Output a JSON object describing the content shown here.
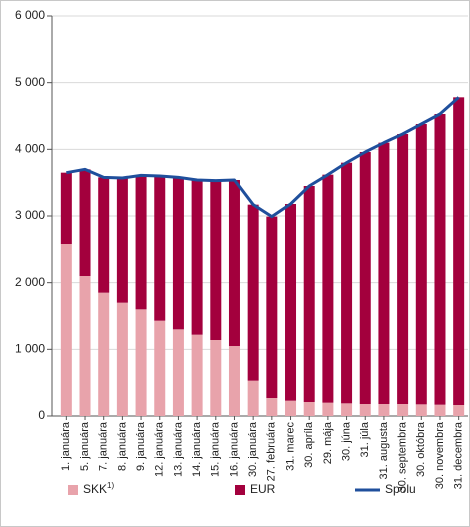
{
  "chart_data": {
    "type": "bar",
    "stacked": true,
    "categories": [
      "1. januára",
      "5. januára",
      "7. januára",
      "8. januára",
      "9. januára",
      "12. januára",
      "13. januára",
      "14. januára",
      "15. januára",
      "16. januára",
      "30. januára",
      "27. februára",
      "31. marec",
      "30. apríla",
      "29. mája",
      "30. júna",
      "31. júla",
      "31. augusta",
      "30. septembra",
      "30. októbra",
      "30. novembra",
      "31. decembra"
    ],
    "series": [
      {
        "name": "SKK",
        "name_superscript": "1)",
        "color": "#e8a3ab",
        "type": "bar",
        "values": [
          2580,
          2100,
          1850,
          1700,
          1600,
          1430,
          1300,
          1220,
          1140,
          1050,
          530,
          270,
          230,
          210,
          200,
          190,
          180,
          180,
          180,
          175,
          170,
          165
        ]
      },
      {
        "name": "EUR",
        "color": "#a3003d",
        "type": "bar",
        "values": [
          1070,
          1600,
          1730,
          1870,
          2010,
          2170,
          2280,
          2320,
          2390,
          2490,
          2640,
          2720,
          2950,
          3240,
          3420,
          3610,
          3780,
          3920,
          4050,
          4205,
          4360,
          4615
        ]
      },
      {
        "name": "Spolu",
        "color": "#1f4f9c",
        "type": "line",
        "values": [
          3650,
          3700,
          3580,
          3570,
          3610,
          3600,
          3580,
          3540,
          3530,
          3540,
          3170,
          2990,
          3180,
          3450,
          3620,
          3800,
          3960,
          4100,
          4230,
          4380,
          4530,
          4780
        ]
      }
    ],
    "ylim": [
      0,
      6000
    ],
    "yticks": [
      0,
      {
        "value": 1000,
        "label": "1 000"
      },
      {
        "value": 2000,
        "label": "2 000"
      },
      {
        "value": 3000,
        "label": "3 000"
      },
      {
        "value": 4000,
        "label": "4 000"
      },
      {
        "value": 5000,
        "label": "5 000"
      },
      {
        "value": 6000,
        "label": "6 000"
      }
    ],
    "grid": true,
    "legend": "bottom"
  }
}
